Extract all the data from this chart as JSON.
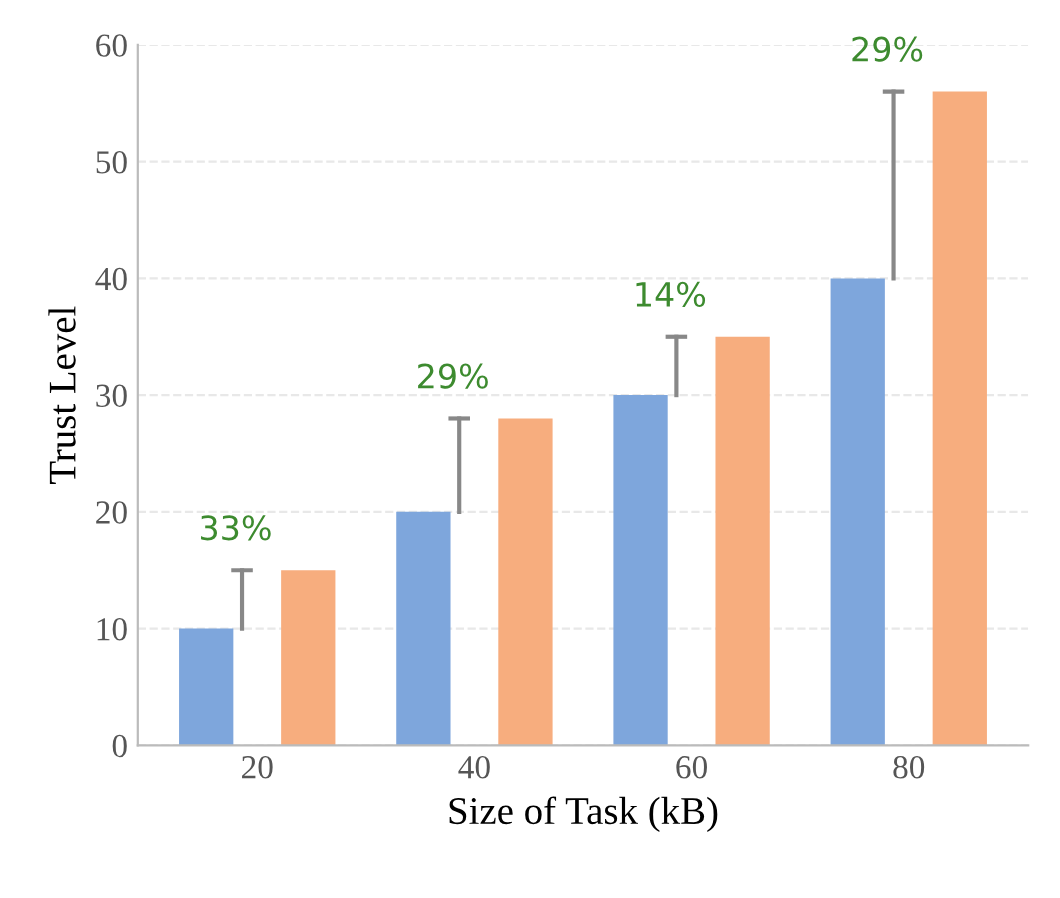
{
  "chart_data": {
    "type": "bar",
    "xlabel": "Size of Task (kB)",
    "ylabel": "Trust Level",
    "categories": [
      "20",
      "40",
      "60",
      "80"
    ],
    "series": [
      {
        "color": "#7ea6dc",
        "values": [
          10,
          20,
          30,
          40
        ]
      },
      {
        "color": "#f7ad7e",
        "values": [
          15,
          28,
          35,
          56
        ]
      }
    ],
    "ylim": [
      0,
      60
    ],
    "yticks": [
      0,
      10,
      20,
      30,
      40,
      50,
      60
    ],
    "grid": "y",
    "legend": false,
    "annotations": [
      "33%",
      "29%",
      "14%",
      "29%"
    ]
  }
}
